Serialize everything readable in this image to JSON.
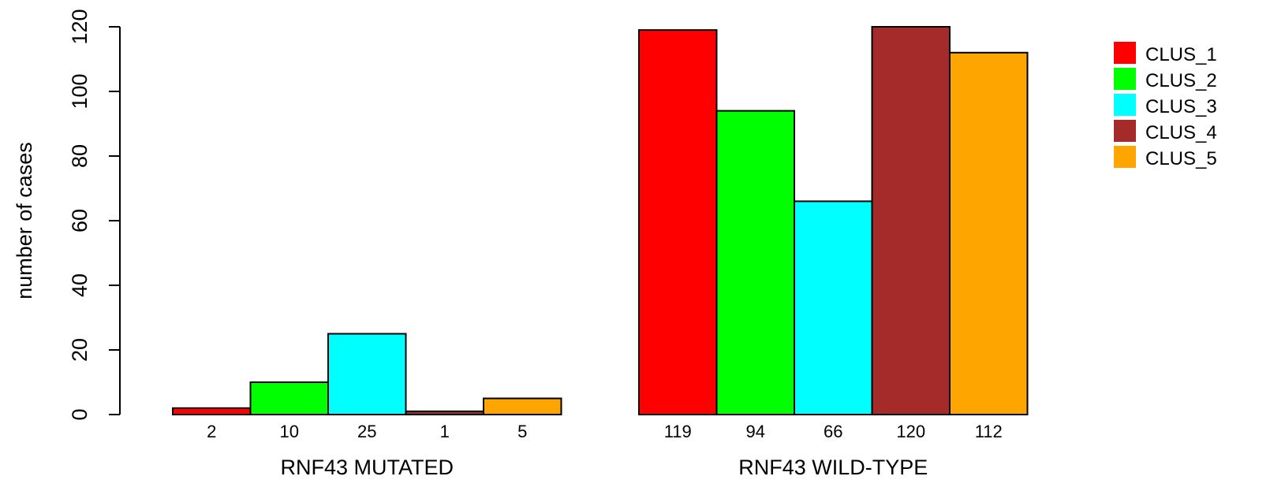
{
  "chart_data": {
    "type": "bar",
    "ylabel": "number of cases",
    "ylim": [
      0,
      120
    ],
    "yticks": [
      0,
      20,
      40,
      60,
      80,
      100,
      120
    ],
    "series_names": [
      "CLUS_1",
      "CLUS_2",
      "CLUS_3",
      "CLUS_4",
      "CLUS_5"
    ],
    "colors": [
      "#ff0000",
      "#00ff00",
      "#00ffff",
      "#a52a2a",
      "#ffa500"
    ],
    "groups": [
      {
        "label": "RNF43 MUTATED",
        "values": [
          2,
          10,
          25,
          1,
          5
        ]
      },
      {
        "label": "RNF43 WILD-TYPE",
        "values": [
          119,
          94,
          66,
          120,
          112
        ]
      }
    ],
    "legend_position": "top-right"
  }
}
